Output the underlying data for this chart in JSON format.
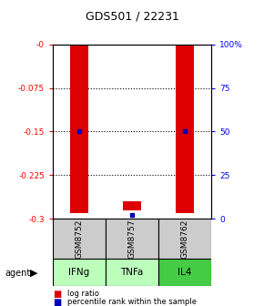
{
  "title": "GDS501 / 22231",
  "samples": [
    "GSM8752",
    "GSM8757",
    "GSM8762"
  ],
  "agents": [
    "IFNg",
    "TNFa",
    "IL4"
  ],
  "bar_bottoms": [
    0.0,
    -0.27,
    0.0
  ],
  "bar_tops": [
    -0.29,
    -0.285,
    -0.29
  ],
  "percentile_ranks_pct": [
    50,
    2,
    50
  ],
  "bar_color": "#dd0000",
  "percentile_color": "#0000bb",
  "sample_box_color": "#cccccc",
  "agent_colors": [
    "#bbffbb",
    "#bbffbb",
    "#44cc44"
  ],
  "yticks_left": [
    0.0,
    -0.075,
    -0.15,
    -0.225,
    -0.3
  ],
  "ytick_labels_left": [
    "-0",
    "-0.075",
    "-0.15",
    "-0.225",
    "-0.3"
  ],
  "ytick_labels_right": [
    "100%",
    "75",
    "50",
    "25",
    "0"
  ],
  "grid_lines": [
    -0.075,
    -0.15,
    -0.225
  ],
  "bar_width": 0.35
}
